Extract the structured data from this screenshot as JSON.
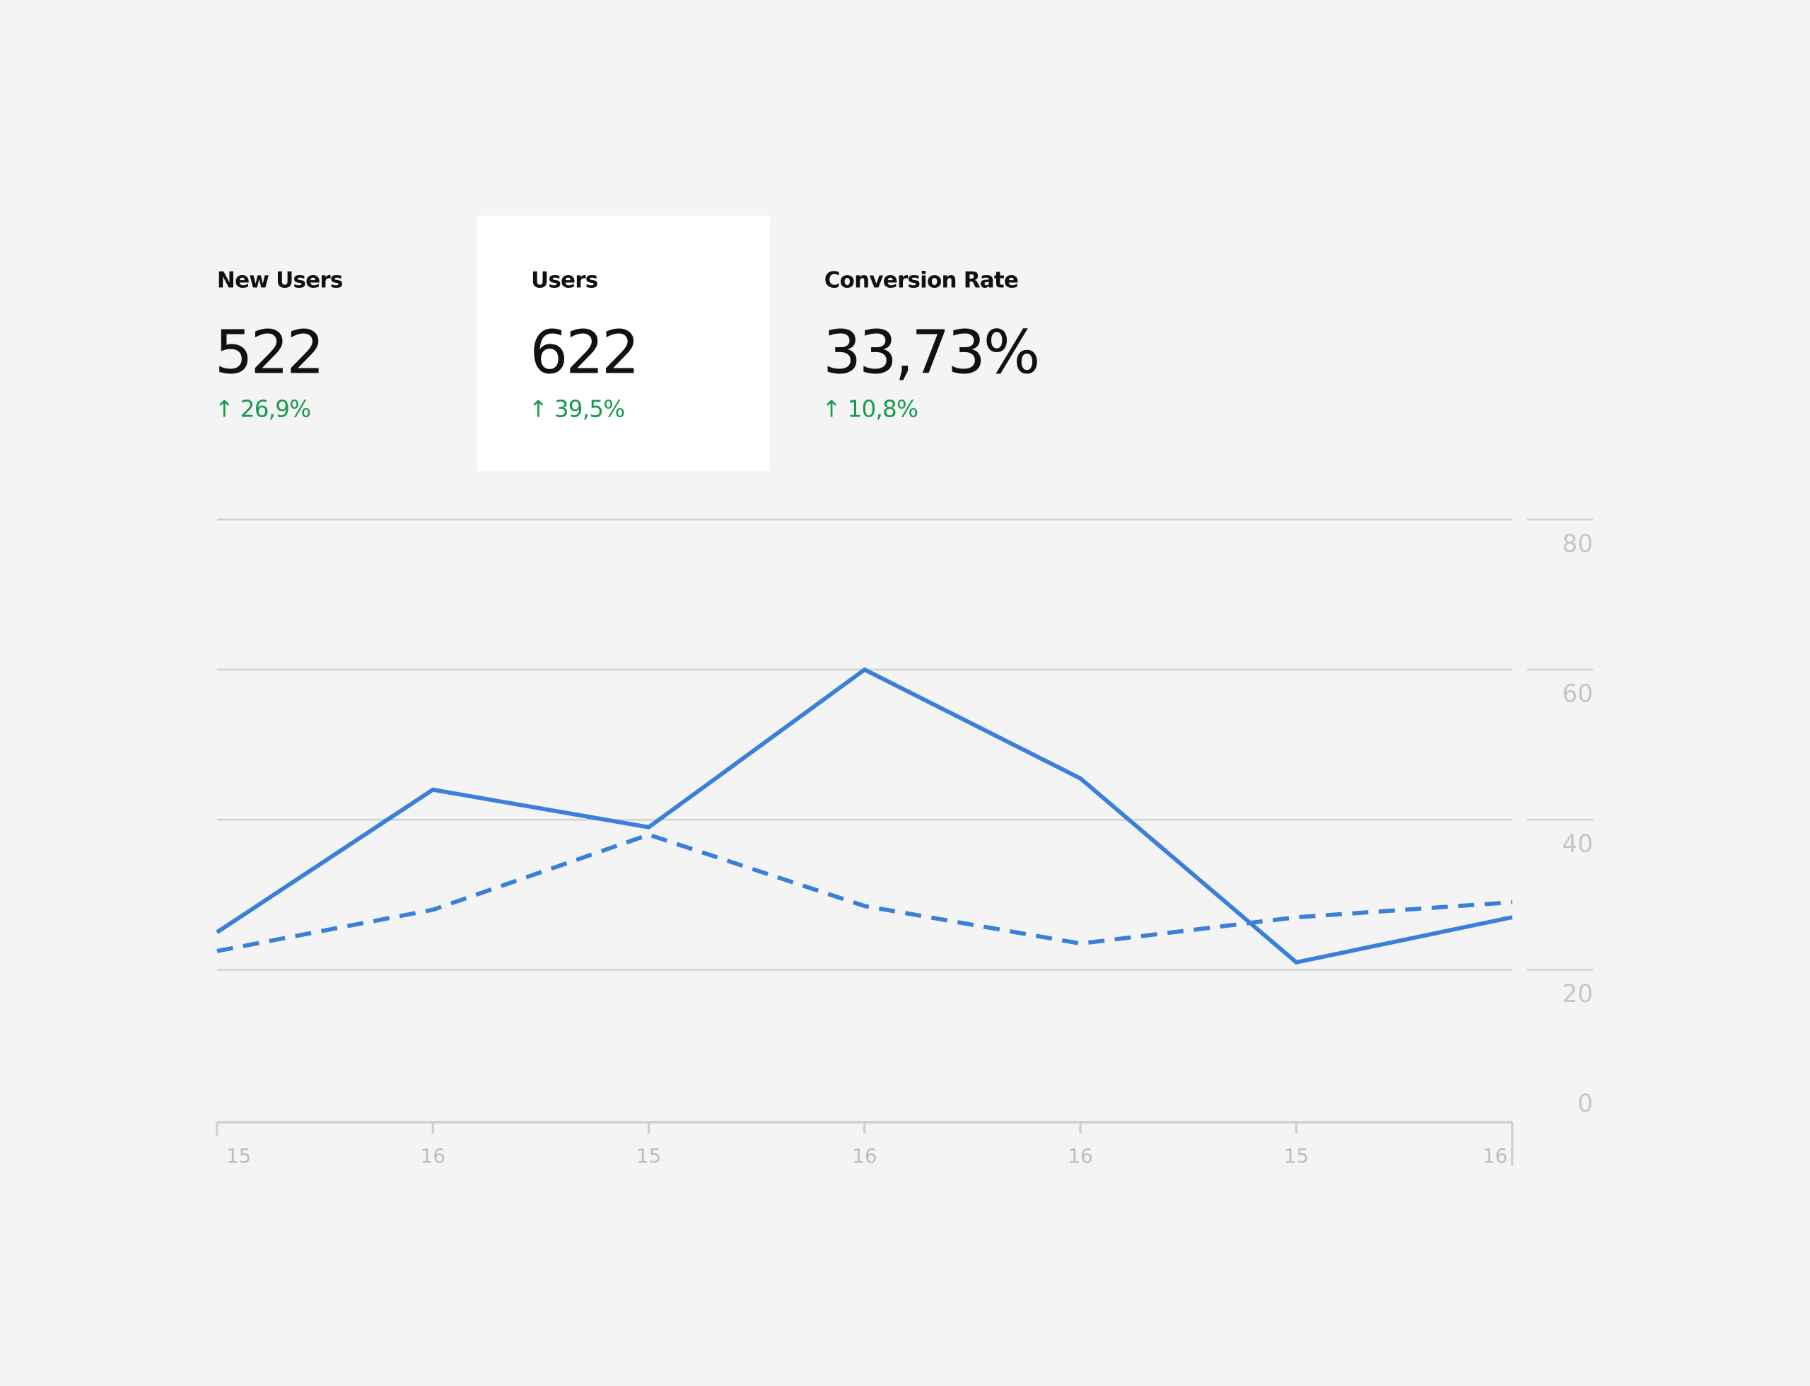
{
  "metrics": [
    {
      "label": "New Users",
      "value": "522",
      "change": "↑ 26,9%"
    },
    {
      "label": "Users",
      "value": "622",
      "change": "↑ 39,5%"
    },
    {
      "label": "Conversion Rate",
      "value": "33,73%",
      "change": "↑ 10,8%"
    }
  ],
  "chart_data": {
    "type": "line",
    "categories": [
      "15",
      "16",
      "15",
      "16",
      "16",
      "15",
      "16"
    ],
    "series": [
      {
        "color": "#3a7fd8",
        "dashed": false,
        "values": [
          25,
          44,
          39,
          60,
          45.5,
          21,
          27
        ]
      },
      {
        "color": "#3a7fd8",
        "dashed": true,
        "values": [
          22.5,
          28,
          38,
          28.5,
          23.5,
          27,
          29
        ]
      }
    ],
    "ylim": [
      0,
      80
    ],
    "yticks": [
      0,
      20,
      40,
      60,
      80
    ],
    "grid": true
  }
}
